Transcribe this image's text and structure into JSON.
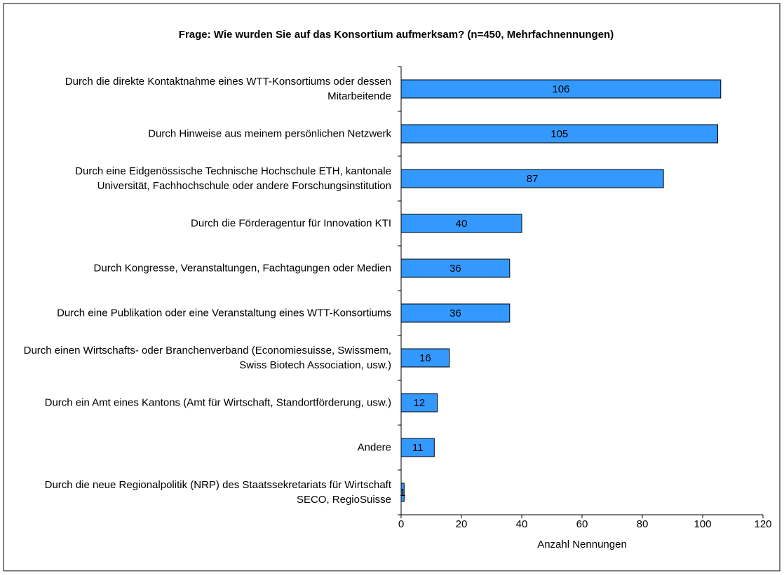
{
  "chart_data": {
    "type": "bar",
    "orientation": "horizontal",
    "title": "Frage: Wie wurden Sie auf das Konsortium aufmerksam? (n=450, Mehrfachnennungen)",
    "categories": [
      "Durch die direkte Kontaktnahme eines WTT-Konsortiums oder dessen Mitarbeitende",
      "Durch Hinweise aus meinem persönlichen Netzwerk",
      "Durch eine Eidgenössische Technische Hochschule ETH, kantonale Universität, Fachhochschule oder andere Forschungsinstitution",
      "Durch die Förderagentur für Innovation KTI",
      "Durch Kongresse, Veranstaltungen, Fachtagungen oder Medien",
      "Durch eine Publikation oder eine Veranstaltung eines WTT-Konsortiums",
      "Durch einen Wirtschafts- oder Branchenverband (Economiesuisse, Swissmem, Swiss Biotech Association, usw.)",
      "Durch ein Amt eines Kantons (Amt für Wirtschaft, Standortförderung, usw.)",
      "Andere",
      "Durch die neue Regionalpolitik (NRP) des Staatssekretariats für Wirtschaft SECO, RegioSuisse"
    ],
    "values": [
      106,
      105,
      87,
      40,
      36,
      36,
      16,
      12,
      11,
      1
    ],
    "color": "#3399ff",
    "xlabel": "Anzahl Nennungen",
    "xlim": [
      0,
      120
    ],
    "xticks": [
      0,
      20,
      40,
      60,
      80,
      100,
      120
    ]
  }
}
